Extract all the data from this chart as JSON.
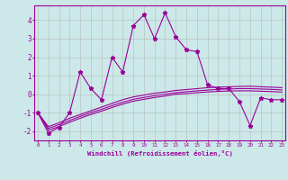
{
  "xlabel": "Windchill (Refroidissement éolien,°C)",
  "x": [
    0,
    1,
    2,
    3,
    4,
    5,
    6,
    7,
    8,
    9,
    10,
    11,
    12,
    13,
    14,
    15,
    16,
    17,
    18,
    19,
    20,
    21,
    22,
    23
  ],
  "line1": [
    -1.0,
    -2.1,
    -1.8,
    -1.0,
    1.2,
    0.3,
    -0.3,
    2.0,
    1.2,
    3.7,
    4.3,
    3.0,
    4.4,
    3.1,
    2.4,
    2.3,
    0.5,
    0.3,
    0.3,
    -0.4,
    -1.7,
    -0.2,
    -0.3,
    -0.3
  ],
  "line2": [
    -1.0,
    -1.75,
    -1.55,
    -1.3,
    -1.1,
    -0.9,
    -0.7,
    -0.5,
    -0.3,
    -0.15,
    -0.05,
    0.05,
    0.12,
    0.2,
    0.25,
    0.3,
    0.35,
    0.38,
    0.4,
    0.42,
    0.43,
    0.4,
    0.38,
    0.35
  ],
  "line3": [
    -1.0,
    -1.85,
    -1.65,
    -1.42,
    -1.2,
    -1.0,
    -0.82,
    -0.62,
    -0.44,
    -0.28,
    -0.18,
    -0.08,
    0.0,
    0.08,
    0.13,
    0.18,
    0.22,
    0.26,
    0.28,
    0.3,
    0.3,
    0.28,
    0.26,
    0.23
  ],
  "line4": [
    -1.0,
    -1.95,
    -1.75,
    -1.52,
    -1.3,
    -1.1,
    -0.92,
    -0.72,
    -0.54,
    -0.38,
    -0.28,
    -0.18,
    -0.1,
    0.0,
    0.03,
    0.08,
    0.12,
    0.15,
    0.17,
    0.18,
    0.18,
    0.16,
    0.14,
    0.11
  ],
  "line_color": "#990099",
  "bg_color": "#cce8e8",
  "grid_color": "#b0b0b0",
  "ylim": [
    -2.5,
    4.8
  ],
  "yticks": [
    -2,
    -1,
    0,
    1,
    2,
    3,
    4
  ],
  "xticks": [
    0,
    1,
    2,
    3,
    4,
    5,
    6,
    7,
    8,
    9,
    10,
    11,
    12,
    13,
    14,
    15,
    16,
    17,
    18,
    19,
    20,
    21,
    22,
    23
  ]
}
